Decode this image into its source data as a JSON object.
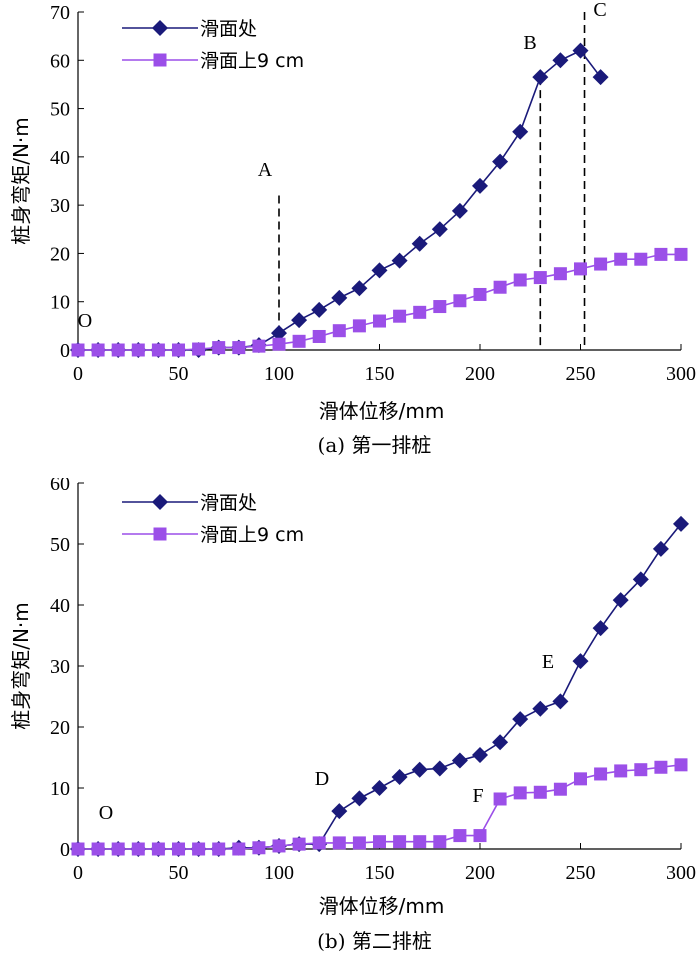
{
  "chart_data": [
    {
      "type": "line",
      "caption": "(a) 第一排桩",
      "xlabel": "滑体位移/mm",
      "ylabel": "桩身弯矩/N·m",
      "xlim": [
        0,
        300
      ],
      "ylim": [
        0,
        70
      ],
      "xticks": [
        0,
        50,
        100,
        150,
        200,
        250,
        300
      ],
      "yticks": [
        0,
        10,
        20,
        30,
        40,
        50,
        60,
        70
      ],
      "legend_position": "top-left",
      "series": [
        {
          "name": "滑面处",
          "color": "#1a1a7a",
          "marker": "diamond",
          "x": [
            0,
            10,
            20,
            30,
            40,
            50,
            60,
            70,
            80,
            90,
            100,
            110,
            120,
            130,
            140,
            150,
            160,
            170,
            180,
            190,
            200,
            210,
            220,
            230,
            240,
            250,
            260
          ],
          "y": [
            0,
            0,
            0,
            0,
            0,
            0,
            0,
            0.5,
            0.5,
            1,
            3.5,
            6.2,
            8.3,
            10.8,
            12.8,
            16.5,
            18.5,
            22,
            25,
            28.8,
            34,
            39,
            45.2,
            56.5,
            60,
            62,
            56.5
          ]
        },
        {
          "name": "滑面上9 cm",
          "color": "#9b4fe8",
          "marker": "square",
          "x": [
            0,
            10,
            20,
            30,
            40,
            50,
            60,
            70,
            80,
            90,
            100,
            110,
            120,
            130,
            140,
            150,
            160,
            170,
            180,
            190,
            200,
            210,
            220,
            230,
            240,
            250,
            260,
            270,
            280,
            290,
            300
          ],
          "y": [
            0,
            0,
            0,
            0,
            0,
            0,
            0.2,
            0.5,
            0.5,
            0.8,
            1.2,
            1.8,
            2.8,
            4,
            5,
            6,
            7,
            7.8,
            9,
            10.2,
            11.5,
            13,
            14.5,
            15,
            15.8,
            16.8,
            17.8,
            18.8,
            18.8,
            19.8,
            19.8
          ]
        }
      ],
      "annotations": [
        {
          "label": "O",
          "x": 10,
          "y": 5
        },
        {
          "label": "A",
          "x": 100,
          "y": 37,
          "line_x": 100,
          "line_ymax": 32
        },
        {
          "label": "B",
          "x": 225,
          "y": 62.5,
          "line_x": 230,
          "line_ymax": 56.5
        },
        {
          "label": "C",
          "x": 260,
          "y": 69,
          "line_x": 252,
          "line_ymax": 70
        }
      ]
    },
    {
      "type": "line",
      "caption": "(b) 第二排桩",
      "xlabel": "滑体位移/mm",
      "ylabel": "桩身弯矩/N·m",
      "xlim": [
        0,
        300
      ],
      "ylim": [
        0,
        60
      ],
      "xticks": [
        0,
        50,
        100,
        150,
        200,
        250,
        300
      ],
      "yticks": [
        0,
        10,
        20,
        30,
        40,
        50,
        60
      ],
      "legend_position": "top-left",
      "series": [
        {
          "name": "滑面处",
          "color": "#1a1a7a",
          "marker": "diamond",
          "x": [
            0,
            10,
            20,
            30,
            40,
            50,
            60,
            70,
            80,
            90,
            100,
            110,
            120,
            130,
            140,
            150,
            160,
            170,
            180,
            190,
            200,
            210,
            220,
            230,
            240,
            250,
            260,
            270,
            280,
            290,
            300
          ],
          "y": [
            0,
            0,
            0,
            0,
            0,
            0,
            0,
            0,
            0.2,
            0.2,
            0.5,
            0.8,
            0.8,
            6.2,
            8.3,
            10,
            11.8,
            13,
            13.2,
            14.5,
            15.4,
            17.5,
            21.3,
            23,
            24.2,
            30.8,
            36.2,
            40.8,
            44.2,
            49.2,
            53.3
          ]
        },
        {
          "name": "滑面上9 cm",
          "color": "#9b4fe8",
          "marker": "square",
          "x": [
            0,
            10,
            20,
            30,
            40,
            50,
            60,
            70,
            80,
            90,
            100,
            110,
            120,
            130,
            140,
            150,
            160,
            170,
            180,
            190,
            200,
            210,
            220,
            230,
            240,
            250,
            260,
            270,
            280,
            290,
            300
          ],
          "y": [
            0,
            0,
            0,
            0,
            0,
            0,
            0,
            0,
            0,
            0.2,
            0.5,
            0.8,
            1,
            1,
            1,
            1.2,
            1.2,
            1.2,
            1.2,
            2.2,
            2.2,
            8.2,
            9.2,
            9.3,
            9.8,
            11.5,
            12.3,
            12.8,
            13,
            13.4,
            13.8
          ]
        }
      ],
      "annotations": [
        {
          "label": "O",
          "x": 14,
          "y": 5
        },
        {
          "label": "D",
          "x": 122,
          "y": 10
        },
        {
          "label": "E",
          "x": 238,
          "y": 29
        },
        {
          "label": "F",
          "x": 200,
          "y": 9
        }
      ]
    }
  ]
}
